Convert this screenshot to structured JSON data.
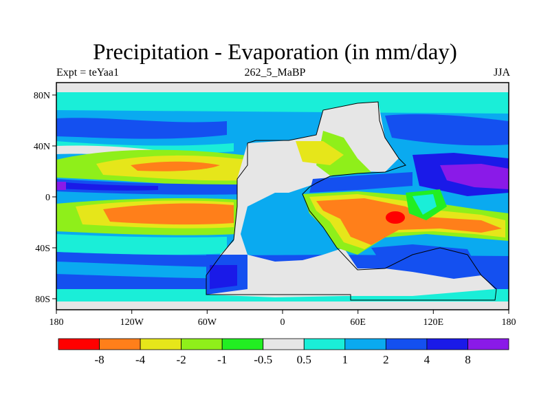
{
  "title": "Precipitation - Evaporation (in mm/day)",
  "subtitle_left": "Expt = teYaa1",
  "subtitle_center": "262_5_MaBP",
  "subtitle_right": "JJA",
  "x_ticks": [
    "180",
    "120W",
    "60W",
    "0",
    "60E",
    "120E",
    "180"
  ],
  "y_ticks": [
    "80N",
    "40N",
    "0",
    "40S",
    "80S"
  ],
  "colorbar": {
    "colors": [
      "#ff0000",
      "#ff7f1a",
      "#e6e61a",
      "#8fef1a",
      "#22ee22",
      "#e6e6e6",
      "#1aeed8",
      "#0aaaf0",
      "#1450f0",
      "#1a1ae8",
      "#8a1ae8"
    ],
    "labels": [
      "-8",
      "-4",
      "-2",
      "-1",
      "-0.5",
      "0.5",
      "1",
      "2",
      "4",
      "8"
    ]
  }
}
